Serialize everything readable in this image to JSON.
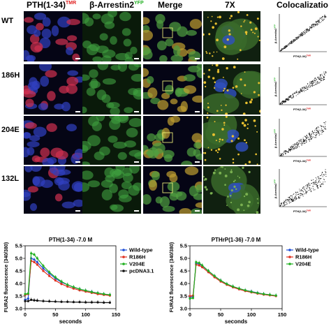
{
  "figure": {
    "columns": [
      {
        "label": "PTH(1-34)",
        "sup": "TMR",
        "sup_color": "#e02020"
      },
      {
        "label": "β-Arrestin2",
        "sup": "YFP",
        "sup_color": "#20b020"
      },
      {
        "label": "Merge",
        "sup": ""
      },
      {
        "label": "7X",
        "sup": ""
      },
      {
        "label": "Colocalizatio",
        "sup": ""
      }
    ],
    "rows": [
      {
        "label": "WT"
      },
      {
        "label": "186H"
      },
      {
        "label": "204E"
      },
      {
        "label": "132L"
      }
    ],
    "scatter_axis": {
      "x": "PTH(1-34)",
      "x_sup": "TMR",
      "y": "β-Arrestin2",
      "y_sup": "YFP"
    }
  },
  "chart_data": [
    {
      "type": "line",
      "title": "PTH(1-34) -7.0 M",
      "xlabel": "seconds",
      "ylabel": "FURA2 fluorescence (340/380)",
      "xlim": [
        0,
        150
      ],
      "ylim": [
        3.0,
        5.5
      ],
      "xticks": [
        "0",
        "50",
        "100",
        "150"
      ],
      "yticks": [
        "3.0",
        "3.5",
        "4.0",
        "4.5",
        "5.0",
        "5.5"
      ],
      "legend": "right",
      "series": [
        {
          "name": "Wild-type",
          "color": "#1f4fd8",
          "x": [
            0,
            5,
            10,
            15,
            20,
            30,
            40,
            50,
            60,
            70,
            80,
            90,
            100,
            110,
            120,
            130,
            140
          ],
          "y": [
            3.35,
            3.4,
            5.0,
            4.95,
            4.85,
            4.6,
            4.4,
            4.2,
            4.05,
            3.95,
            3.85,
            3.78,
            3.72,
            3.67,
            3.62,
            3.58,
            3.55
          ]
        },
        {
          "name": "R186H",
          "color": "#e03020",
          "x": [
            0,
            5,
            10,
            15,
            20,
            30,
            40,
            50,
            60,
            70,
            80,
            90,
            100,
            110,
            120,
            130,
            140
          ],
          "y": [
            3.55,
            3.58,
            4.9,
            4.85,
            4.75,
            4.5,
            4.3,
            4.12,
            3.98,
            3.88,
            3.8,
            3.73,
            3.68,
            3.63,
            3.58,
            3.55,
            3.52
          ]
        },
        {
          "name": "V204E",
          "color": "#20b020",
          "x": [
            0,
            5,
            10,
            15,
            20,
            30,
            40,
            50,
            60,
            70,
            80,
            90,
            100,
            110,
            120,
            130,
            140
          ],
          "y": [
            3.58,
            3.6,
            5.2,
            5.15,
            5.0,
            4.7,
            4.45,
            4.25,
            4.08,
            3.95,
            3.86,
            3.78,
            3.72,
            3.66,
            3.62,
            3.58,
            3.55
          ]
        },
        {
          "name": "pcDNA3.1",
          "color": "#111111",
          "x": [
            0,
            5,
            10,
            15,
            20,
            30,
            40,
            50,
            60,
            70,
            80,
            90,
            100,
            110,
            120,
            130,
            140
          ],
          "y": [
            3.3,
            3.3,
            3.35,
            3.33,
            3.32,
            3.3,
            3.29,
            3.28,
            3.27,
            3.27,
            3.26,
            3.26,
            3.25,
            3.25,
            3.25,
            3.24,
            3.24
          ]
        }
      ]
    },
    {
      "type": "line",
      "title": "PTHrP(1-36) -7.0 M",
      "xlabel": "seconds",
      "ylabel": "FURA2 fluorescence (340/380)",
      "xlim": [
        0,
        150
      ],
      "ylim": [
        3.0,
        5.5
      ],
      "xticks": [
        "0",
        "50",
        "100",
        "150"
      ],
      "yticks": [
        "3.0",
        "3.5",
        "4.0",
        "4.5",
        "5.0",
        "5.5"
      ],
      "legend": "right",
      "series": [
        {
          "name": "Wild-type",
          "color": "#1f4fd8",
          "x": [
            0,
            5,
            10,
            15,
            20,
            30,
            40,
            50,
            60,
            70,
            80,
            90,
            100,
            110,
            120,
            130,
            140
          ],
          "y": [
            3.45,
            3.48,
            4.8,
            4.78,
            4.7,
            4.5,
            4.3,
            4.12,
            3.98,
            3.88,
            3.8,
            3.73,
            3.68,
            3.63,
            3.58,
            3.55,
            3.52
          ]
        },
        {
          "name": "R186H",
          "color": "#e03020",
          "x": [
            0,
            5,
            10,
            15,
            20,
            30,
            40,
            50,
            60,
            70,
            80,
            90,
            100,
            110,
            120,
            130,
            140
          ],
          "y": [
            3.5,
            3.52,
            4.75,
            4.72,
            4.65,
            4.45,
            4.25,
            4.08,
            3.95,
            3.85,
            3.77,
            3.7,
            3.65,
            3.6,
            3.56,
            3.53,
            3.5
          ]
        },
        {
          "name": "V204E",
          "color": "#20b020",
          "x": [
            0,
            5,
            10,
            15,
            20,
            30,
            40,
            50,
            60,
            70,
            80,
            90,
            100,
            110,
            120,
            130,
            140
          ],
          "y": [
            3.4,
            3.42,
            4.85,
            4.82,
            4.72,
            4.5,
            4.3,
            4.12,
            3.98,
            3.88,
            3.8,
            3.73,
            3.67,
            3.62,
            3.58,
            3.55,
            3.52
          ]
        }
      ]
    }
  ]
}
